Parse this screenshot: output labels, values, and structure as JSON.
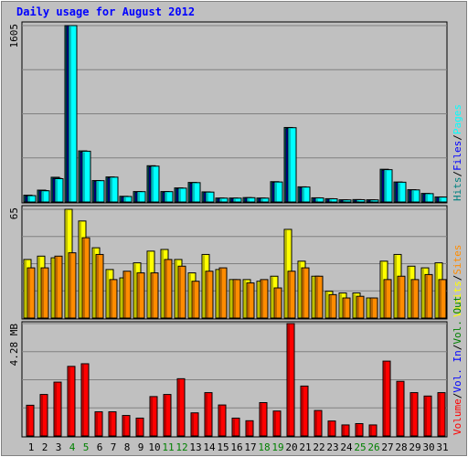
{
  "chart_data": {
    "type": "bar",
    "title": "Daily usage for August 2012",
    "days": [
      "1",
      "2",
      "3",
      "4",
      "5",
      "6",
      "7",
      "8",
      "9",
      "10",
      "11",
      "12",
      "13",
      "14",
      "15",
      "16",
      "17",
      "18",
      "19",
      "20",
      "21",
      "22",
      "23",
      "24",
      "25",
      "26",
      "27",
      "28",
      "29",
      "30",
      "31"
    ],
    "weekend_days": [
      "4",
      "5",
      "11",
      "12",
      "18",
      "19",
      "25",
      "26"
    ],
    "panels": [
      {
        "id": "hits",
        "max_label": "1605",
        "ymax": 1605,
        "legend": [
          {
            "text": "Hits",
            "color": "#008080"
          },
          {
            "text": "/",
            "color": "#000000"
          },
          {
            "text": "Files",
            "color": "#0000ff"
          },
          {
            "text": "/",
            "color": "#000000"
          },
          {
            "text": "Pages",
            "color": "#00ffff"
          }
        ],
        "series": [
          {
            "name": "Hits",
            "color": "#008080",
            "values": [
              62,
              108,
              225,
              1605,
              465,
              195,
              228,
              52,
              95,
              330,
              95,
              128,
              178,
              92,
              36,
              36,
              40,
              36,
              185,
              678,
              138,
              38,
              30,
              20,
              22,
              20,
              298,
              182,
              112,
              78,
              46
            ]
          },
          {
            "name": "Files",
            "color": "#0000ff",
            "values": [
              55,
              104,
              215,
              1605,
              455,
              190,
              220,
              48,
              90,
              320,
              90,
              122,
              170,
              88,
              34,
              33,
              38,
              34,
              178,
              668,
              132,
              35,
              28,
              18,
              20,
              18,
              290,
              178,
              108,
              74,
              44
            ]
          },
          {
            "name": "Pages",
            "color": "#00ffff",
            "values": [
              58,
              102,
              212,
              1605,
              462,
              194,
              226,
              50,
              94,
              326,
              94,
              126,
              176,
              90,
              35,
              35,
              39,
              35,
              182,
              676,
              136,
              37,
              29,
              19,
              21,
              19,
              294,
              180,
              110,
              76,
              45
            ]
          }
        ]
      },
      {
        "id": "visits",
        "max_label": "65",
        "ymax": 65,
        "legend": [
          {
            "text": "Visits",
            "color": "#ffff00"
          },
          {
            "text": "/",
            "color": "#000000"
          },
          {
            "text": "Sites",
            "color": "#ff8c00"
          }
        ],
        "series": [
          {
            "name": "Visits",
            "color": "#ffff00",
            "values": [
              35,
              37,
              36,
              65,
              58,
              42,
              29,
              24,
              33,
              40,
              41,
              35,
              27,
              38,
              29,
              23,
              23,
              22,
              25,
              53,
              34,
              25,
              16,
              15,
              15,
              12,
              34,
              38,
              31,
              30,
              33
            ]
          },
          {
            "name": "Sites",
            "color": "#ff8c00",
            "values": [
              30,
              30,
              37,
              39,
              48,
              38,
              23,
              28,
              27,
              27,
              35,
              31,
              22,
              28,
              30,
              23,
              21,
              23,
              18,
              28,
              30,
              25,
              14,
              12,
              13,
              12,
              23,
              25,
              23,
              26,
              23
            ]
          }
        ]
      },
      {
        "id": "volume",
        "max_label": "4.28 MB",
        "ymax": 4.28,
        "legend": [
          {
            "text": "Volume",
            "color": "#ff0000"
          },
          {
            "text": "/",
            "color": "#000000"
          },
          {
            "text": "Vol. In",
            "color": "#0000ff"
          },
          {
            "text": "/",
            "color": "#000000"
          },
          {
            "text": "Vol. Out",
            "color": "#008000"
          }
        ],
        "series": [
          {
            "name": "Volume",
            "color": "#ff0000",
            "values": [
              1.17,
              1.58,
              2.05,
              2.65,
              2.75,
              0.92,
              0.92,
              0.78,
              0.68,
              1.5,
              1.58,
              2.18,
              0.88,
              1.65,
              1.18,
              0.68,
              0.58,
              1.27,
              0.95,
              4.28,
              1.9,
              0.97,
              0.57,
              0.42,
              0.47,
              0.42,
              2.85,
              2.08,
              1.65,
              1.52,
              1.65
            ]
          }
        ]
      }
    ]
  }
}
